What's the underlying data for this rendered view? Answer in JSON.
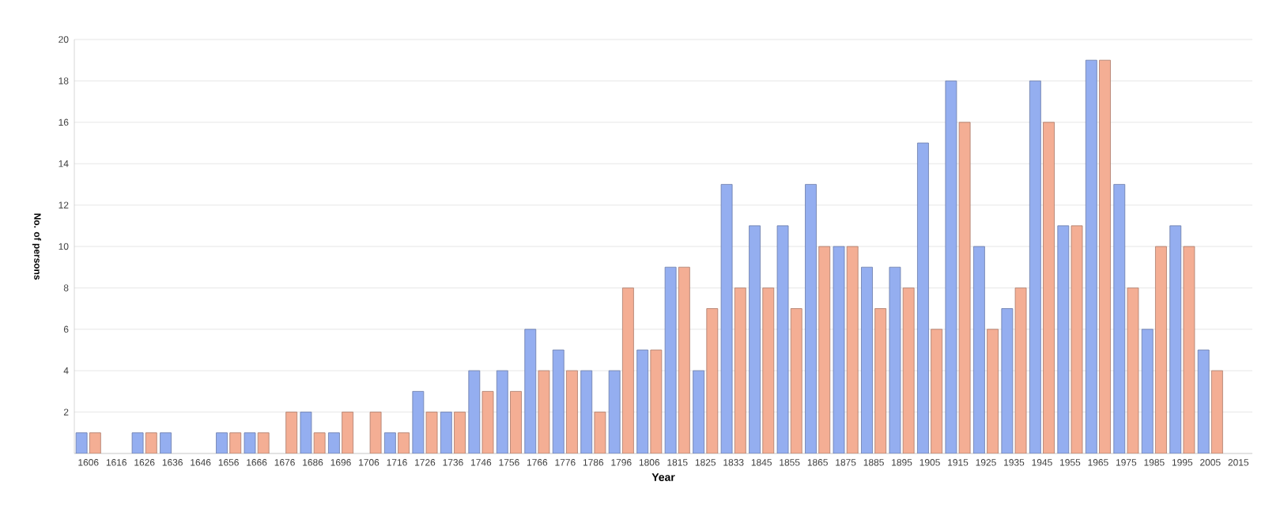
{
  "chart_data": {
    "type": "bar",
    "xlabel": "Year",
    "ylabel": "No. of persons",
    "categories": [
      "1606",
      "1616",
      "1626",
      "1636",
      "1646",
      "1656",
      "1666",
      "1676",
      "1686",
      "1696",
      "1706",
      "1716",
      "1726",
      "1736",
      "1746",
      "1756",
      "1766",
      "1776",
      "1786",
      "1796",
      "1806",
      "1815",
      "1825",
      "1833",
      "1845",
      "1855",
      "1865",
      "1875",
      "1885",
      "1895",
      "1905",
      "1915",
      "1925",
      "1935",
      "1945",
      "1955",
      "1965",
      "1975",
      "1985",
      "1995",
      "2005",
      "2015"
    ],
    "series": [
      {
        "color": "#94aef0",
        "values": [
          1,
          null,
          1,
          1,
          null,
          1,
          1,
          null,
          2,
          1,
          null,
          1,
          3,
          2,
          4,
          4,
          6,
          5,
          4,
          4,
          5,
          9,
          4,
          13,
          11,
          11,
          13,
          10,
          9,
          9,
          15,
          18,
          10,
          7,
          18,
          11,
          19,
          13,
          6,
          11,
          5,
          null
        ]
      },
      {
        "color": "#f4ae94",
        "values": [
          1,
          null,
          1,
          null,
          null,
          1,
          1,
          2,
          1,
          2,
          2,
          1,
          2,
          2,
          3,
          3,
          4,
          4,
          2,
          8,
          5,
          9,
          7,
          8,
          8,
          7,
          10,
          10,
          7,
          8,
          6,
          16,
          6,
          8,
          16,
          11,
          19,
          8,
          10,
          10,
          4,
          null
        ]
      }
    ],
    "ylim": [
      0,
      20
    ],
    "yticks": [
      {
        "value": 0,
        "label": null
      },
      2,
      4,
      6,
      8,
      10,
      12,
      14,
      16,
      18,
      20
    ],
    "grid": "y"
  }
}
